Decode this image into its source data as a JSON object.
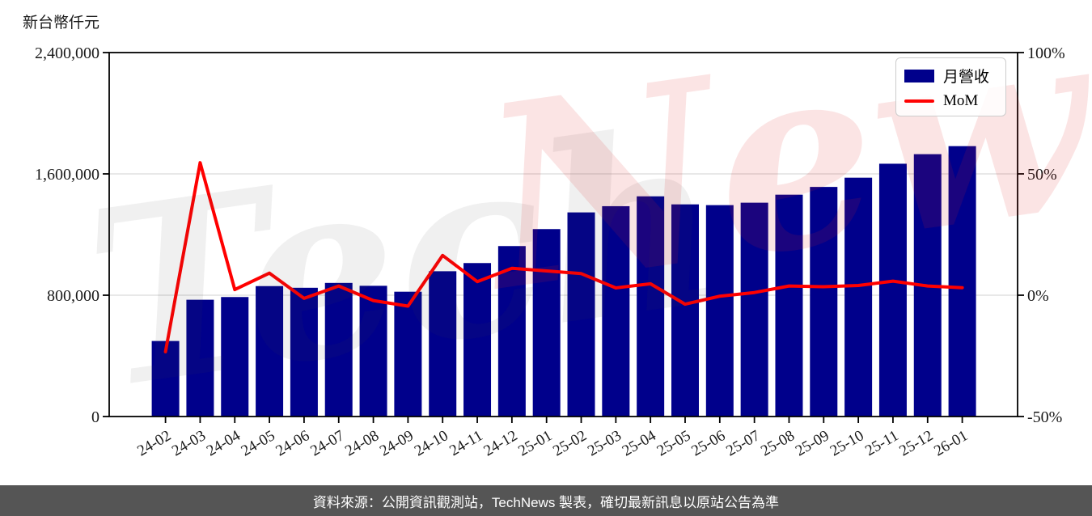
{
  "title": "新台幣仟元",
  "watermark": {
    "part1": "Tech",
    "part2": "News"
  },
  "footer": {
    "text": "資料來源：公開資訊觀測站，TechNews 製表，確切最新訊息以原站公告為準"
  },
  "colors": {
    "bar": "#00008B",
    "line": "#FF0000",
    "grid": "#D9D9D9",
    "spine": "#000000",
    "tick_label": "#1a1a1a",
    "footer_bg": "#555555",
    "footer_text": "#FFFFFF"
  },
  "chart_data": {
    "type": "bar",
    "title": "新台幣仟元",
    "categories": [
      "24-02",
      "24-03",
      "24-04",
      "24-05",
      "24-06",
      "24-07",
      "24-08",
      "24-09",
      "24-10",
      "24-11",
      "24-12",
      "25-01",
      "25-02",
      "25-03",
      "25-04",
      "25-05",
      "25-06",
      "25-07",
      "25-08",
      "25-09",
      "25-10",
      "25-11",
      "25-12",
      "26-01"
    ],
    "series": [
      {
        "name": "月營收",
        "type": "bar",
        "axis": "left",
        "unit": "新台幣仟元",
        "values": [
          498000,
          770000,
          788000,
          860000,
          849000,
          881000,
          862000,
          823000,
          958000,
          1012000,
          1124000,
          1236000,
          1346000,
          1387000,
          1452000,
          1399000,
          1394000,
          1410000,
          1463000,
          1514000,
          1575000,
          1667000,
          1730000,
          1783000
        ]
      },
      {
        "name": "MoM",
        "type": "line",
        "axis": "right",
        "unit": "%",
        "values": [
          -23.3,
          54.6,
          2.3,
          9.1,
          -1.3,
          3.8,
          -2.2,
          -4.5,
          16.4,
          5.6,
          11.1,
          10.0,
          8.9,
          3.0,
          4.7,
          -3.7,
          -0.4,
          1.1,
          3.8,
          3.5,
          4.0,
          5.8,
          3.8,
          3.1
        ]
      }
    ],
    "left_axis": {
      "label": "新台幣仟元",
      "range": [
        0,
        2400000
      ],
      "ticks": [
        {
          "label": "0",
          "value": 0
        },
        {
          "label": "800,000",
          "value": 800000
        },
        {
          "label": "1,600,000",
          "value": 1600000
        },
        {
          "label": "2,400,000",
          "value": 2400000
        }
      ]
    },
    "right_axis": {
      "range": [
        -50,
        100
      ],
      "ticks": [
        {
          "label": "-50%",
          "value": -50
        },
        {
          "label": "0%",
          "value": 0
        },
        {
          "label": "50%",
          "value": 50
        },
        {
          "label": "100%",
          "value": 100
        }
      ]
    },
    "grid": "horizontal",
    "legend_position": "top-right"
  }
}
